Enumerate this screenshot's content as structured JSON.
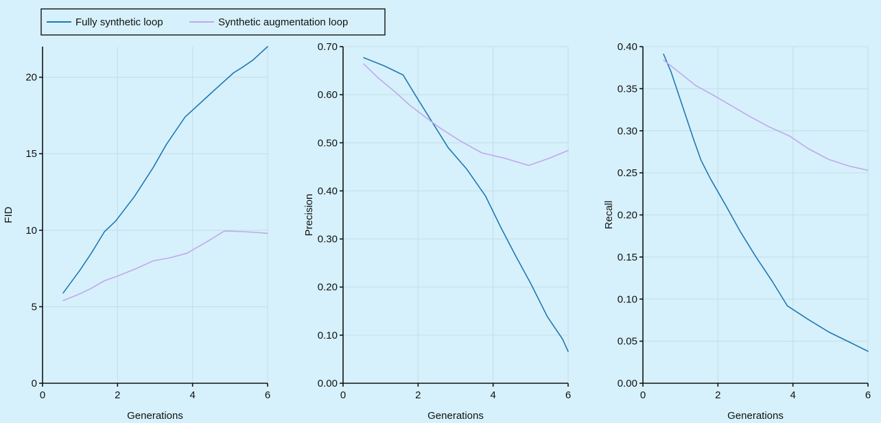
{
  "legend": [
    {
      "label": "Fully synthetic loop",
      "color": "#1f77b4"
    },
    {
      "label": "Synthetic augmentation loop",
      "color": "#c0a8ec"
    }
  ],
  "chart_data": [
    {
      "type": "line",
      "xlabel": "Generations",
      "ylabel": "FID",
      "xlim": [
        0,
        6
      ],
      "ylim": [
        0,
        22
      ],
      "xticks": [
        "0",
        "2",
        "4",
        "6"
      ],
      "yticks": [
        {
          "value": 0,
          "label": "0"
        },
        {
          "value": 5,
          "label": "5"
        },
        {
          "value": 10,
          "label": "10"
        },
        {
          "value": 15,
          "label": "15"
        },
        {
          "value": 20,
          "label": "20"
        }
      ],
      "grid": true,
      "series": [
        {
          "name": "Fully synthetic loop",
          "color": "#1f77b4",
          "x": [
            0.55,
            1.0,
            1.3,
            1.65,
            1.95,
            2.45,
            2.95,
            3.3,
            3.8,
            4.2,
            4.6,
            5.1,
            5.3,
            5.6,
            6.0
          ],
          "y": [
            5.9,
            7.4,
            8.5,
            9.9,
            10.6,
            12.2,
            14.1,
            15.6,
            17.4,
            18.3,
            19.2,
            20.3,
            20.6,
            21.1,
            22.0
          ]
        },
        {
          "name": "Synthetic augmentation loop",
          "color": "#c0a8ec",
          "x": [
            0.55,
            0.95,
            1.3,
            1.65,
            2.0,
            2.5,
            2.95,
            3.4,
            3.85,
            4.35,
            4.85,
            5.4,
            6.0
          ],
          "y": [
            5.4,
            5.8,
            6.2,
            6.7,
            7.0,
            7.5,
            8.0,
            8.2,
            8.5,
            9.2,
            9.95,
            9.9,
            9.8
          ]
        }
      ]
    },
    {
      "type": "line",
      "xlabel": "Generations",
      "ylabel": "Precision",
      "xlim": [
        0,
        6
      ],
      "ylim": [
        0,
        0.7
      ],
      "xticks": [
        "0",
        "2",
        "4",
        "6"
      ],
      "yticks": [
        {
          "value": 0,
          "label": "0.00"
        },
        {
          "value": 0.1,
          "label": "0.10"
        },
        {
          "value": 0.2,
          "label": "0.20"
        },
        {
          "value": 0.3,
          "label": "0.30"
        },
        {
          "value": 0.4,
          "label": "0.40"
        },
        {
          "value": 0.5,
          "label": "0.50"
        },
        {
          "value": 0.6,
          "label": "0.60"
        },
        {
          "value": 0.7,
          "label": "0.70"
        }
      ],
      "grid": true,
      "series": [
        {
          "name": "Fully synthetic loop",
          "color": "#1f77b4",
          "x": [
            0.55,
            1.1,
            1.6,
            2.0,
            2.4,
            2.8,
            3.3,
            3.8,
            4.2,
            4.6,
            5.0,
            5.45,
            5.85,
            6.0
          ],
          "y": [
            0.677,
            0.66,
            0.641,
            0.59,
            0.54,
            0.49,
            0.445,
            0.389,
            0.325,
            0.265,
            0.208,
            0.138,
            0.092,
            0.066
          ]
        },
        {
          "name": "Synthetic augmentation loop",
          "color": "#c0a8ec",
          "x": [
            0.55,
            0.95,
            1.4,
            1.75,
            2.2,
            2.6,
            3.1,
            3.7,
            4.3,
            4.95,
            5.5,
            6.0
          ],
          "y": [
            0.664,
            0.634,
            0.605,
            0.58,
            0.553,
            0.53,
            0.505,
            0.479,
            0.468,
            0.453,
            0.468,
            0.484
          ]
        }
      ]
    },
    {
      "type": "line",
      "xlabel": "Generations",
      "ylabel": "Recall",
      "xlim": [
        0,
        6
      ],
      "ylim": [
        0,
        0.4
      ],
      "xticks": [
        "0",
        "2",
        "4",
        "6"
      ],
      "yticks": [
        {
          "value": 0,
          "label": "0.00"
        },
        {
          "value": 0.05,
          "label": "0.05"
        },
        {
          "value": 0.1,
          "label": "0.10"
        },
        {
          "value": 0.15,
          "label": "0.15"
        },
        {
          "value": 0.2,
          "label": "0.20"
        },
        {
          "value": 0.25,
          "label": "0.25"
        },
        {
          "value": 0.3,
          "label": "0.30"
        },
        {
          "value": 0.35,
          "label": "0.35"
        },
        {
          "value": 0.4,
          "label": "0.40"
        }
      ],
      "grid": true,
      "series": [
        {
          "name": "Fully synthetic loop",
          "color": "#1f77b4",
          "x": [
            0.55,
            0.75,
            1.05,
            1.35,
            1.55,
            1.8,
            2.2,
            2.6,
            3.0,
            3.45,
            3.85,
            4.4,
            4.95,
            5.5,
            6.0
          ],
          "y": [
            0.391,
            0.37,
            0.33,
            0.29,
            0.265,
            0.243,
            0.212,
            0.18,
            0.151,
            0.121,
            0.092,
            0.076,
            0.061,
            0.049,
            0.038
          ]
        },
        {
          "name": "Synthetic augmentation loop",
          "color": "#c0a8ec",
          "x": [
            0.55,
            0.95,
            1.4,
            1.85,
            2.35,
            2.85,
            3.35,
            3.9,
            4.4,
            4.95,
            5.5,
            6.0
          ],
          "y": [
            0.384,
            0.37,
            0.354,
            0.343,
            0.33,
            0.317,
            0.305,
            0.294,
            0.279,
            0.266,
            0.258,
            0.253
          ]
        }
      ]
    }
  ]
}
